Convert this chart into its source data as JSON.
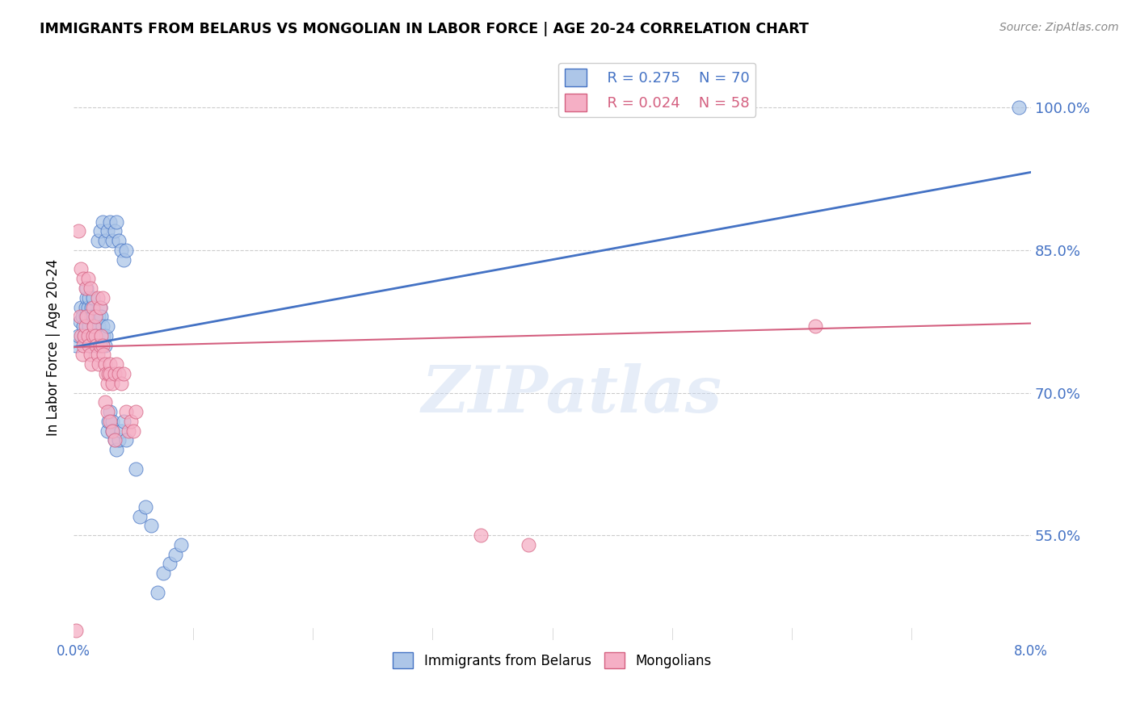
{
  "title": "IMMIGRANTS FROM BELARUS VS MONGOLIAN IN LABOR FORCE | AGE 20-24 CORRELATION CHART",
  "source": "Source: ZipAtlas.com",
  "ylabel": "In Labor Force | Age 20-24",
  "yticks": [
    0.55,
    0.7,
    0.85,
    1.0
  ],
  "ytick_labels": [
    "55.0%",
    "70.0%",
    "85.0%",
    "100.0%"
  ],
  "xlim": [
    0.0,
    0.08
  ],
  "ylim": [
    0.44,
    1.055
  ],
  "legend_r_belarus": "R = 0.275",
  "legend_n_belarus": "N = 70",
  "legend_r_mongolian": "R = 0.024",
  "legend_n_mongolian": "N = 58",
  "color_belarus": "#adc6e8",
  "color_mongolian": "#f5afc5",
  "color_line_belarus": "#4472c4",
  "color_line_mongolian": "#d46080",
  "belarus_x": [
    0.0002,
    0.0004,
    0.0005,
    0.0006,
    0.0007,
    0.0008,
    0.0009,
    0.001,
    0.001,
    0.0011,
    0.0011,
    0.0012,
    0.0012,
    0.0013,
    0.0013,
    0.0014,
    0.0014,
    0.0015,
    0.0015,
    0.0016,
    0.0016,
    0.0017,
    0.0017,
    0.0018,
    0.0019,
    0.002,
    0.002,
    0.0021,
    0.0021,
    0.0022,
    0.0023,
    0.0024,
    0.0025,
    0.0026,
    0.0027,
    0.0028,
    0.0028,
    0.0029,
    0.003,
    0.0032,
    0.0032,
    0.0034,
    0.0036,
    0.0038,
    0.004,
    0.0042,
    0.0044,
    0.0052,
    0.0055,
    0.006,
    0.0065,
    0.007,
    0.0075,
    0.008,
    0.0085,
    0.009,
    0.002,
    0.0022,
    0.0024,
    0.0026,
    0.0028,
    0.003,
    0.0032,
    0.0034,
    0.0036,
    0.0038,
    0.004,
    0.0042,
    0.0044,
    0.079
  ],
  "belarus_y": [
    0.75,
    0.76,
    0.775,
    0.79,
    0.78,
    0.77,
    0.76,
    0.78,
    0.79,
    0.8,
    0.81,
    0.78,
    0.79,
    0.8,
    0.77,
    0.76,
    0.75,
    0.78,
    0.79,
    0.8,
    0.78,
    0.76,
    0.77,
    0.78,
    0.76,
    0.75,
    0.76,
    0.77,
    0.78,
    0.79,
    0.78,
    0.77,
    0.76,
    0.75,
    0.76,
    0.77,
    0.66,
    0.67,
    0.68,
    0.67,
    0.66,
    0.65,
    0.64,
    0.65,
    0.66,
    0.67,
    0.65,
    0.62,
    0.57,
    0.58,
    0.56,
    0.49,
    0.51,
    0.52,
    0.53,
    0.54,
    0.86,
    0.87,
    0.88,
    0.86,
    0.87,
    0.88,
    0.86,
    0.87,
    0.88,
    0.86,
    0.85,
    0.84,
    0.85,
    1.0
  ],
  "mongolian_x": [
    0.0002,
    0.0004,
    0.0005,
    0.0006,
    0.0007,
    0.0008,
    0.0009,
    0.001,
    0.0011,
    0.0012,
    0.0013,
    0.0014,
    0.0015,
    0.0016,
    0.0017,
    0.0018,
    0.0019,
    0.002,
    0.0021,
    0.0022,
    0.0023,
    0.0024,
    0.0025,
    0.0026,
    0.0027,
    0.0028,
    0.0029,
    0.003,
    0.003,
    0.0032,
    0.0034,
    0.0036,
    0.0038,
    0.004,
    0.0042,
    0.0044,
    0.0046,
    0.0048,
    0.005,
    0.0052,
    0.0006,
    0.0008,
    0.001,
    0.0012,
    0.0014,
    0.0016,
    0.0018,
    0.002,
    0.0022,
    0.0024,
    0.0026,
    0.0028,
    0.003,
    0.0032,
    0.0034,
    0.034,
    0.038,
    0.062
  ],
  "mongolian_y": [
    0.45,
    0.87,
    0.78,
    0.76,
    0.74,
    0.75,
    0.76,
    0.77,
    0.78,
    0.76,
    0.75,
    0.74,
    0.73,
    0.76,
    0.77,
    0.76,
    0.75,
    0.74,
    0.73,
    0.75,
    0.76,
    0.75,
    0.74,
    0.73,
    0.72,
    0.71,
    0.72,
    0.73,
    0.72,
    0.71,
    0.72,
    0.73,
    0.72,
    0.71,
    0.72,
    0.68,
    0.66,
    0.67,
    0.66,
    0.68,
    0.83,
    0.82,
    0.81,
    0.82,
    0.81,
    0.79,
    0.78,
    0.8,
    0.79,
    0.8,
    0.69,
    0.68,
    0.67,
    0.66,
    0.65,
    0.55,
    0.54,
    0.77
  ],
  "reg_belarus": [
    0.748,
    0.932
  ],
  "reg_mongolian": [
    0.748,
    0.773
  ]
}
